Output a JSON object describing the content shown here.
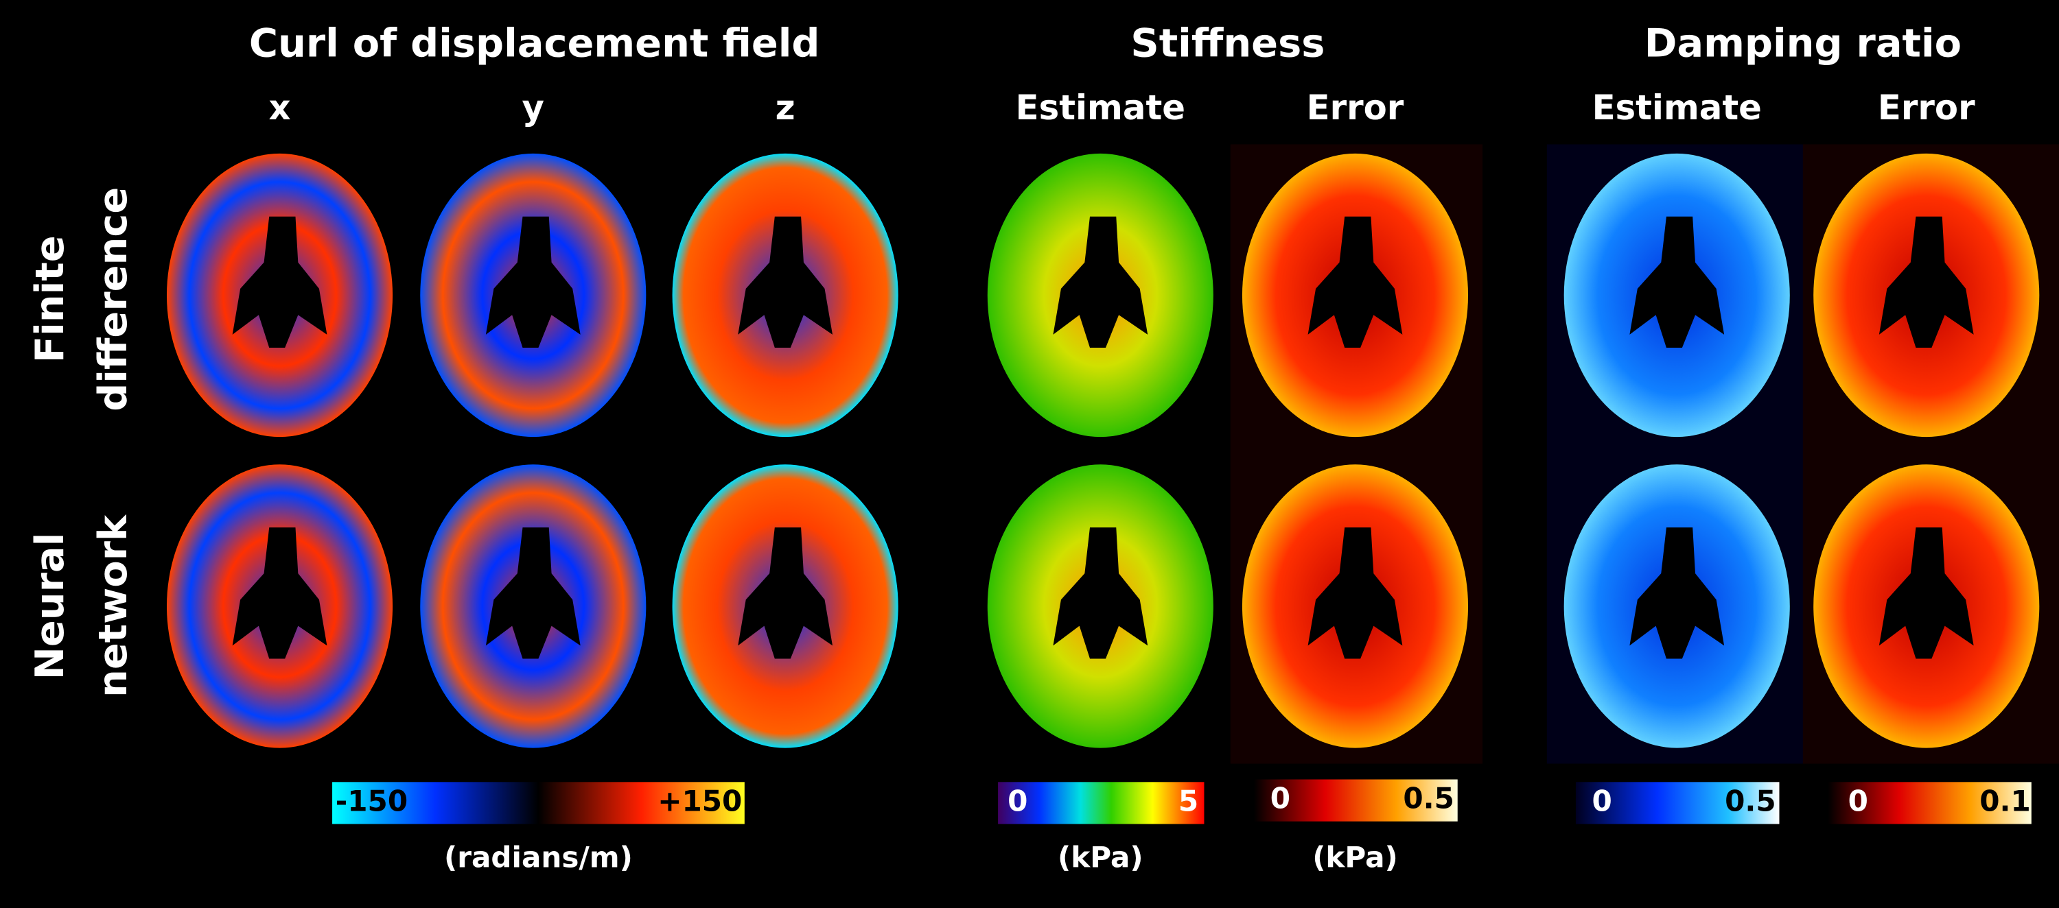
{
  "headers": {
    "curl": {
      "title": "Curl of displacement field",
      "columns": [
        "x",
        "y",
        "z"
      ]
    },
    "stiffness": {
      "title": "Stiffness",
      "columns": [
        "Estimate",
        "Error"
      ]
    },
    "damping": {
      "title": "Damping ratio",
      "columns": [
        "Estimate",
        "Error"
      ]
    }
  },
  "rows": [
    [
      "Finite",
      "difference"
    ],
    [
      "Neural",
      "network"
    ]
  ],
  "colorbars": [
    {
      "min": "-150",
      "max": "+150",
      "unit": "(radians/m)"
    },
    {
      "min": "0",
      "max": "5",
      "unit": "(kPa)"
    },
    {
      "min": "0",
      "max": "0.5",
      "unit": "(kPa)"
    },
    {
      "min": "0",
      "max": "0.5"
    },
    {
      "min": "0",
      "max": "0.1"
    }
  ]
}
